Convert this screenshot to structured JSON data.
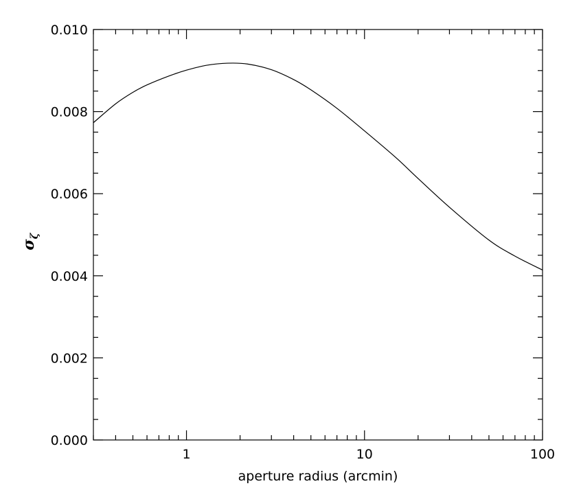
{
  "chart_data": {
    "type": "line",
    "title": "",
    "xlabel": "aperture radius (arcmin)",
    "ylabel": {
      "symbol": "σ",
      "subscript": "ζ"
    },
    "xscale": "log",
    "xlim": [
      0.3,
      100
    ],
    "ylim": [
      0.0,
      0.01
    ],
    "grid": false,
    "legend": "none",
    "xticks": [
      1,
      10,
      100
    ],
    "xtick_labels": [
      "1",
      "10",
      "100"
    ],
    "yticks": [
      0.0,
      0.002,
      0.004,
      0.006,
      0.008,
      0.01
    ],
    "ytick_labels": [
      "0.000",
      "0.002",
      "0.004",
      "0.006",
      "0.008",
      "0.010"
    ],
    "series": [
      {
        "color": "#000000",
        "x": [
          0.3,
          0.4,
          0.5,
          0.6,
          0.8,
          1.0,
          1.3,
          1.7,
          2.2,
          3.0,
          4.0,
          5.0,
          7.0,
          10.0,
          15.0,
          20.0,
          30.0,
          50.0,
          70.0,
          100.0
        ],
        "y": [
          0.00773,
          0.00819,
          0.00847,
          0.00865,
          0.00887,
          0.00901,
          0.00913,
          0.00918,
          0.00916,
          0.00902,
          0.00878,
          0.00853,
          0.00808,
          0.00753,
          0.00688,
          0.00637,
          0.00567,
          0.00487,
          0.00448,
          0.00414
        ]
      }
    ]
  }
}
